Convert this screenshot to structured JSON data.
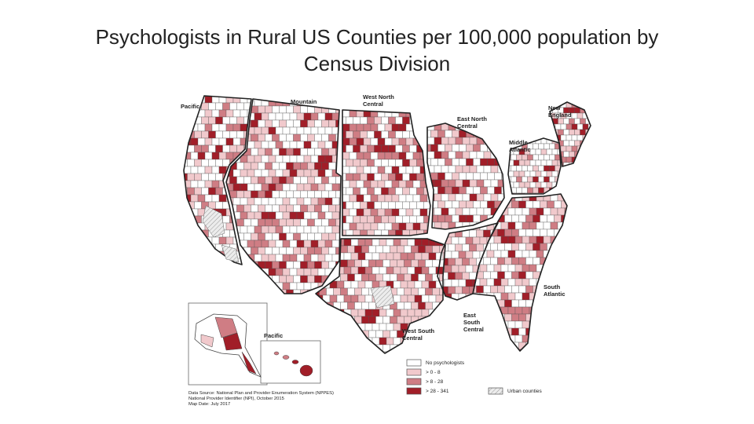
{
  "slide": {
    "title_line1": "Psychologists in Rural US Counties per 100,000 population by",
    "title_line2": "Census Division"
  },
  "map": {
    "divisions": [
      {
        "id": "pacific",
        "label_lines": [
          "Pacific"
        ]
      },
      {
        "id": "mountain",
        "label_lines": [
          "Mountain"
        ]
      },
      {
        "id": "west-north-central",
        "label_lines": [
          "West North",
          "Central"
        ]
      },
      {
        "id": "east-north-central",
        "label_lines": [
          "East North",
          "Central"
        ]
      },
      {
        "id": "new-england",
        "label_lines": [
          "New",
          "England"
        ]
      },
      {
        "id": "middle-atlantic",
        "label_lines": [
          "Middle",
          "Atlantic"
        ]
      },
      {
        "id": "south-atlantic",
        "label_lines": [
          "South",
          "Atlantic"
        ]
      },
      {
        "id": "east-south-central",
        "label_lines": [
          "East",
          "South",
          "Central"
        ]
      },
      {
        "id": "west-south-central",
        "label_lines": [
          "West South",
          "Central"
        ]
      },
      {
        "id": "pacific-inset",
        "label_lines": [
          "Pacific"
        ]
      }
    ],
    "colors": {
      "none": "#ffffff",
      "low": "#f1c9cc",
      "mid": "#cf7d84",
      "high": "#a11e28",
      "urban": "#e3e3e3",
      "border": "#555555"
    },
    "legend": {
      "items": [
        {
          "key": "none",
          "label": "No psychologists"
        },
        {
          "key": "low",
          "label": "> 0 - 8"
        },
        {
          "key": "mid",
          "label": "> 8 - 28"
        },
        {
          "key": "high",
          "label": "> 28 - 341"
        }
      ],
      "urban_label": "Urban counties"
    },
    "source": [
      "Data Source: National Plan and Provider Enumeration System (NPPES)",
      "National Provider Identifier (NPI), October 2015",
      "Map Date: July 2017"
    ]
  }
}
